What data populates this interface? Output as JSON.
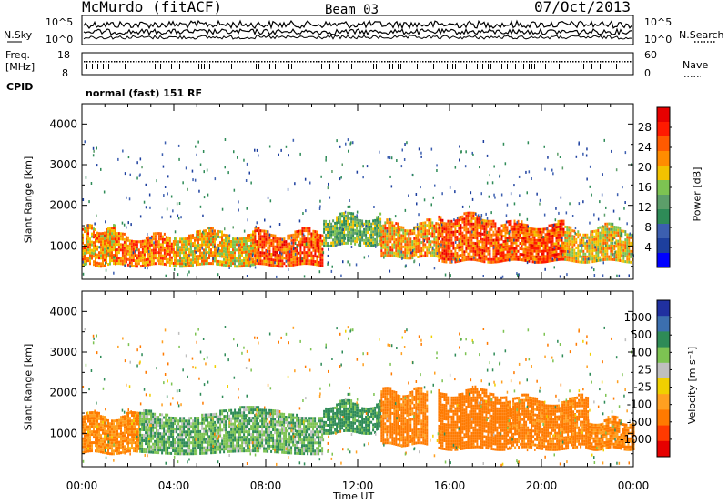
{
  "header": {
    "site": "McMurdo (fitACF)",
    "beam": "Beam 03",
    "date": "07/Oct/2013"
  },
  "noise_panel": {
    "left_label": "N.Sky",
    "right_label": "N.Search",
    "left_ticks": [
      "10^5",
      "10^0"
    ],
    "right_ticks": [
      "10^5",
      "10^0"
    ]
  },
  "freq_panel": {
    "left_label_1": "Freq.",
    "left_label_2": "[MHz]",
    "left_ticks": [
      "18",
      "8"
    ],
    "right_label": "Nave",
    "right_ticks": [
      "60",
      "0"
    ]
  },
  "cpid_panel": {
    "label": "CPID",
    "value": "normal (fast) 151 RF"
  },
  "colors": {
    "power": [
      "#0000ff",
      "#1d3f9e",
      "#3c5fb0",
      "#2e8b57",
      "#5c9e6a",
      "#7dc352",
      "#f2c200",
      "#ff8c00",
      "#ff5a00",
      "#ff1a00",
      "#e60000"
    ],
    "velocity": [
      "#e60000",
      "#ff3a00",
      "#ff7a00",
      "#ffa020",
      "#f0d000",
      "#bfbfbf",
      "#7dc352",
      "#2e8b57",
      "#3c6faf",
      "#2030a0"
    ]
  },
  "chart_data": [
    {
      "type": "heatmap",
      "name": "power",
      "xlabel": "",
      "ylabel": "Slant Range [km]",
      "xlim": [
        0,
        24
      ],
      "ylim": [
        180,
        4500
      ],
      "yticks": [
        "1000",
        "2000",
        "3000",
        "4000"
      ],
      "colorbar": {
        "label": "Power [dB]",
        "range": [
          0,
          32
        ],
        "ticks": [
          "4",
          "8",
          "12",
          "16",
          "20",
          "24",
          "28"
        ]
      },
      "bands": [
        {
          "t0": 0.0,
          "t1": 1.5,
          "r0": 500,
          "r1": 1400,
          "level": 22
        },
        {
          "t0": 1.5,
          "t1": 4.0,
          "r0": 500,
          "r1": 1200,
          "level": 24
        },
        {
          "t0": 4.0,
          "t1": 7.5,
          "r0": 500,
          "r1": 1300,
          "level": 20
        },
        {
          "t0": 7.5,
          "t1": 10.5,
          "r0": 500,
          "r1": 1300,
          "level": 26
        },
        {
          "t0": 10.5,
          "t1": 13.0,
          "r0": 1000,
          "r1": 1700,
          "level": 14
        },
        {
          "t0": 13.0,
          "t1": 15.5,
          "r0": 700,
          "r1": 1500,
          "level": 22
        },
        {
          "t0": 15.5,
          "t1": 18.0,
          "r0": 600,
          "r1": 1700,
          "level": 26
        },
        {
          "t0": 18.0,
          "t1": 21.0,
          "r0": 600,
          "r1": 1500,
          "level": 26
        },
        {
          "t0": 21.0,
          "t1": 24.0,
          "r0": 600,
          "r1": 1400,
          "level": 20
        }
      ]
    },
    {
      "type": "heatmap",
      "name": "velocity",
      "xlabel": "Time UT",
      "ylabel": "Slant Range [km]",
      "xlim": [
        0,
        24
      ],
      "ylim": [
        180,
        4500
      ],
      "xticks": [
        "00:00",
        "04:00",
        "08:00",
        "12:00",
        "16:00",
        "20:00",
        "00:00"
      ],
      "yticks": [
        "1000",
        "2000",
        "3000",
        "4000"
      ],
      "colorbar": {
        "label": "Velocity [m s⁻¹]",
        "ticks": [
          "1000",
          "500",
          "100",
          "25",
          "-25",
          "-100",
          "-500",
          "-1000"
        ]
      },
      "bands": [
        {
          "t0": 0.0,
          "t1": 2.5,
          "r0": 500,
          "r1": 1400,
          "velocity": -100
        },
        {
          "t0": 2.5,
          "t1": 10.5,
          "r0": 500,
          "r1": 1500,
          "velocity": 80
        },
        {
          "t0": 10.5,
          "t1": 13.0,
          "r0": 1000,
          "r1": 1700,
          "velocity": 150
        },
        {
          "t0": 13.0,
          "t1": 15.0,
          "r0": 700,
          "r1": 2000,
          "velocity": -150
        },
        {
          "t0": 15.5,
          "t1": 18.5,
          "r0": 600,
          "r1": 2000,
          "velocity": -200
        },
        {
          "t0": 18.5,
          "t1": 22.0,
          "r0": 600,
          "r1": 1800,
          "velocity": -150
        },
        {
          "t0": 22.0,
          "t1": 24.0,
          "r0": 600,
          "r1": 1300,
          "velocity": -120
        }
      ]
    }
  ]
}
